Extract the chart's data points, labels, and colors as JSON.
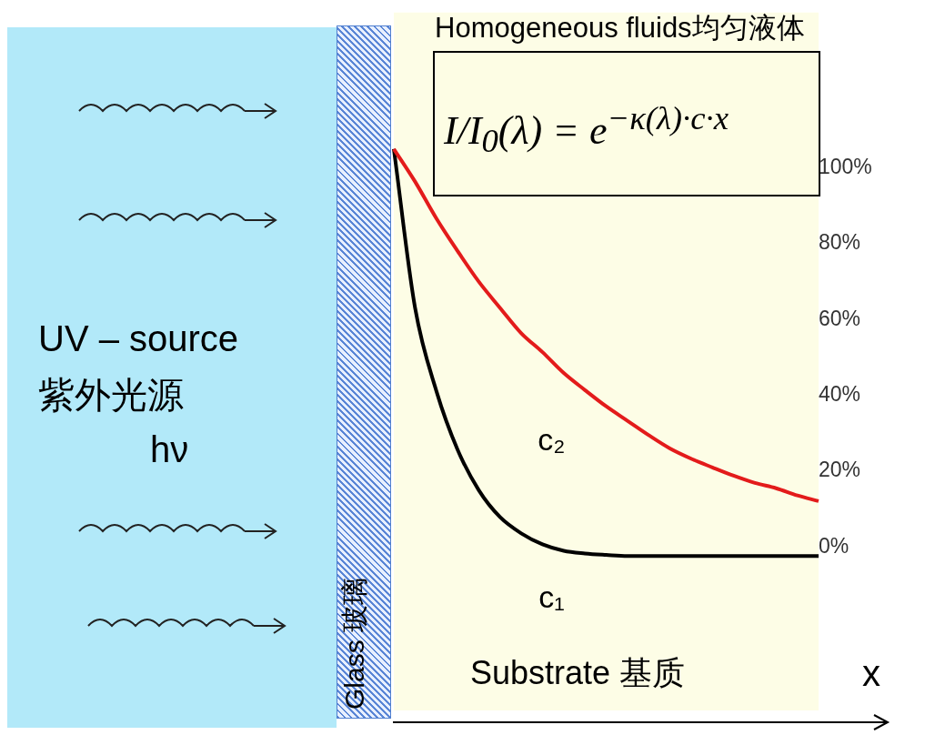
{
  "chart_data": {
    "type": "line",
    "title": "Homogeneous fluids均匀液体",
    "xlabel": "x",
    "annotations": [
      "I/I$_{0}$(λ) = e$^{−κ(λ)·c·x}$",
      "UV – source",
      "紫外光源",
      "hν",
      "Glass 玻璃",
      "Substrate 基质"
    ],
    "categories": [
      null,
      null,
      null,
      null,
      null,
      null,
      null,
      null,
      null,
      null,
      null,
      null,
      null,
      null,
      null,
      null,
      null,
      null,
      null,
      null,
      null
    ],
    "series": [
      {
        "name": "c₂",
        "color": "#e31b1b",
        "values": [
          105,
          96.4,
          86.7,
          78.1,
          70,
          63.1,
          56.4,
          51.4,
          45.9,
          41.4,
          37.1,
          33.3,
          29.5,
          26,
          23.3,
          21,
          18.8,
          16.9,
          15.5,
          13.6,
          12.1
        ]
      },
      {
        "name": "c₁",
        "color": "#000000",
        "values": [
          105,
          63.1,
          41.2,
          25.7,
          15,
          7.9,
          3.6,
          0.7,
          -1,
          -1.7,
          -2.1,
          -2.4,
          -2.4,
          -2.4,
          -2.4,
          -2.4,
          -2.4,
          -2.4,
          -2.4,
          -2.4,
          -2.4
        ]
      }
    ],
    "ylim": [
      -46,
      141
    ],
    "yticks": [
      {
        "value": 0,
        "label": "0%"
      },
      {
        "value": 20,
        "label": "20%"
      },
      {
        "value": 40,
        "label": "40%"
      },
      {
        "value": 60,
        "label": "60%"
      },
      {
        "value": 80,
        "label": "80%"
      },
      {
        "value": 100,
        "label": "100%"
      }
    ],
    "tick_labels": "y",
    "grid": false,
    "legend": false,
    "marker": "none",
    "line_style": "solid"
  }
}
